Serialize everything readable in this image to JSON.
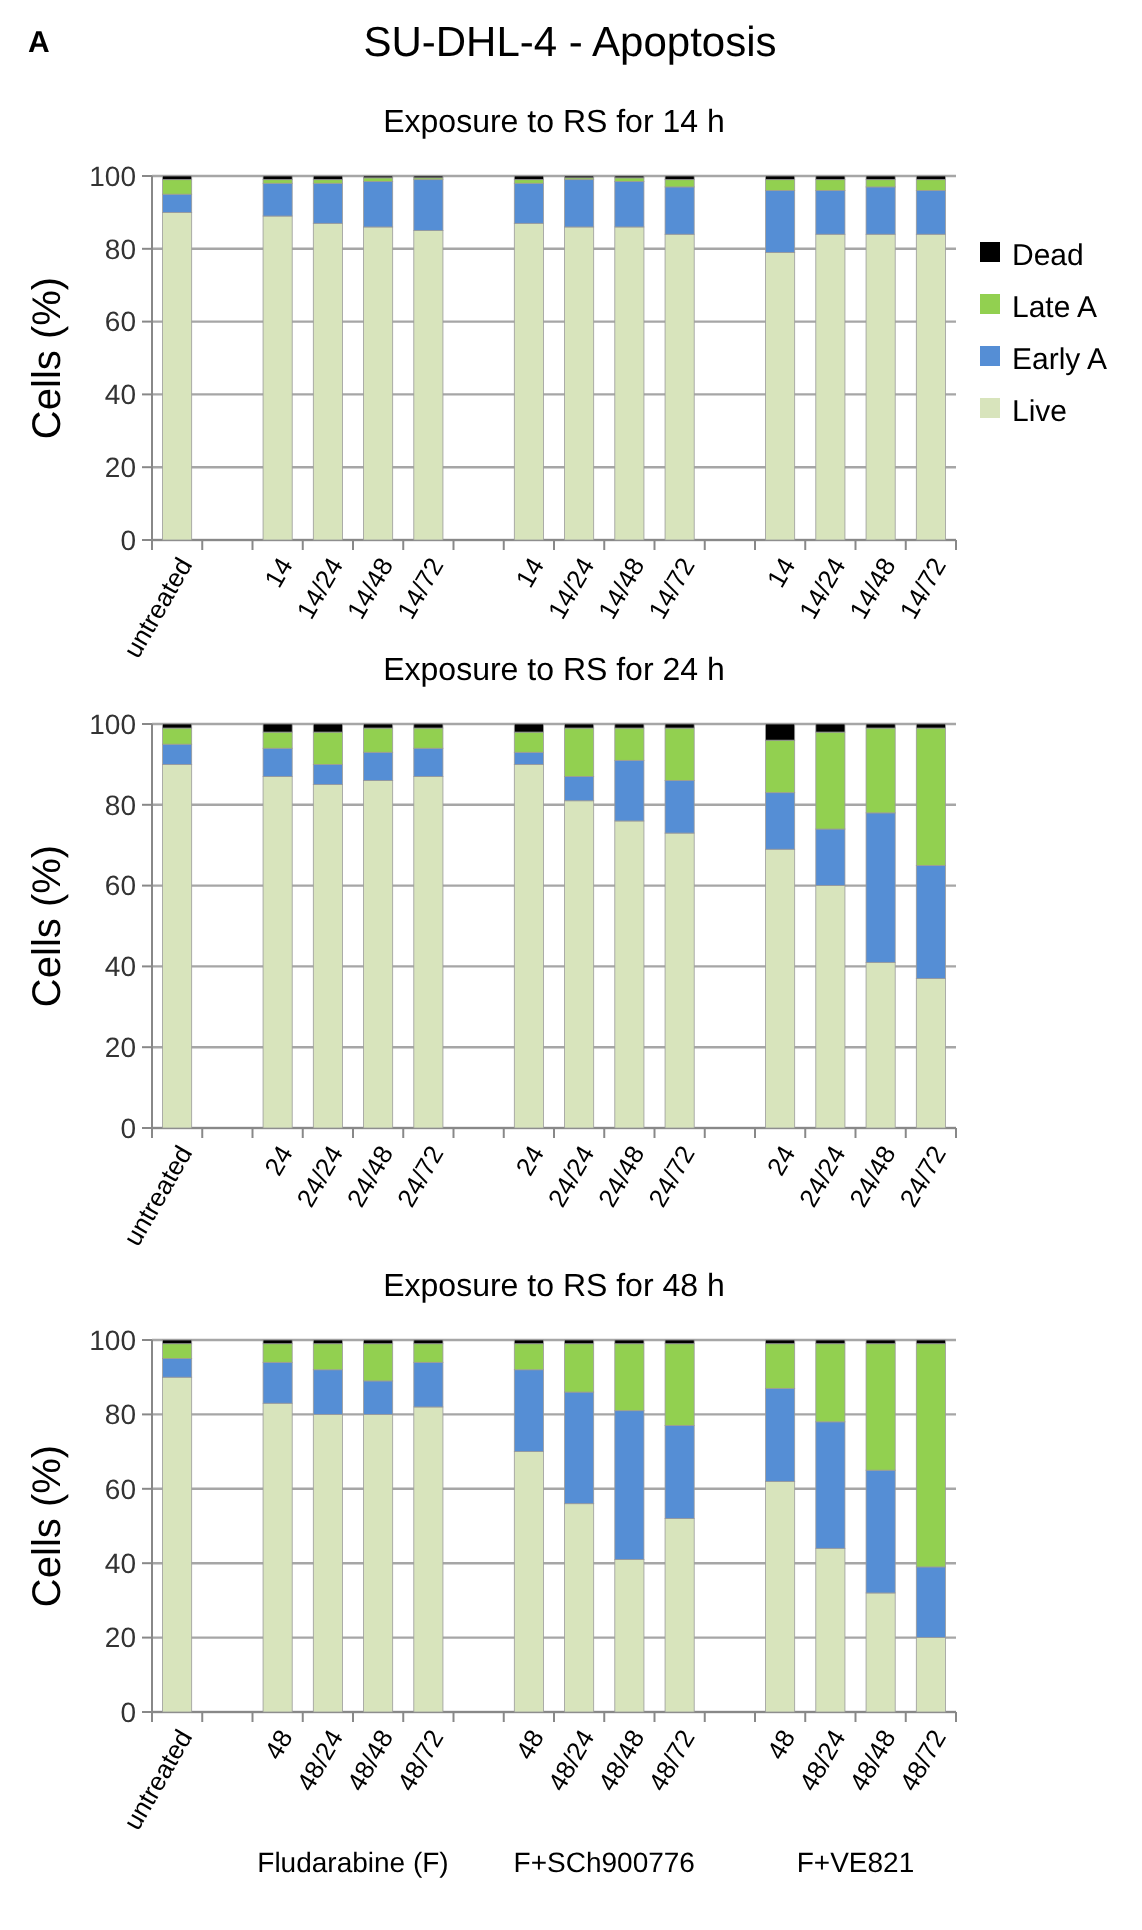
{
  "chart_data": [
    {
      "type": "bar",
      "stacked": true,
      "title": "SU-DHL-4 - Apoptosis",
      "subtitle": "Exposure to RS for 14 h",
      "annotations": [
        "A"
      ],
      "ylabel": "Cells (%)",
      "ylim": [
        0,
        100
      ],
      "yticks": [
        0,
        20,
        40,
        60,
        80,
        100
      ],
      "grid": "y",
      "legend": "right",
      "categories": [
        "untreated",
        null,
        "14",
        "14/24",
        "14/48",
        "14/72",
        null,
        "14",
        "14/24",
        "14/48",
        "14/72",
        null,
        "14",
        "14/24",
        "14/48",
        "14/72"
      ],
      "series": [
        {
          "name": "Live",
          "color": "#d8e4bc",
          "values": [
            90,
            null,
            89,
            87,
            86,
            85,
            null,
            87,
            86,
            86,
            84,
            null,
            79,
            84,
            84,
            84
          ]
        },
        {
          "name": "Early A",
          "color": "#558ed5",
          "values": [
            5,
            null,
            9,
            11,
            12.5,
            14,
            null,
            11,
            13,
            12.5,
            13,
            null,
            17,
            12,
            13,
            12
          ]
        },
        {
          "name": "Late A",
          "color": "#92d050",
          "values": [
            4,
            null,
            1,
            1,
            1,
            0.5,
            null,
            1,
            0.5,
            1,
            2,
            null,
            3,
            3,
            2,
            3
          ]
        },
        {
          "name": "Dead",
          "color": "#000000",
          "values": [
            1,
            null,
            1,
            1,
            0.5,
            0.5,
            null,
            1,
            0.5,
            0.5,
            1,
            null,
            1,
            1,
            1,
            1
          ]
        }
      ]
    },
    {
      "type": "bar",
      "stacked": true,
      "title": "Exposure to RS for  24 h",
      "ylabel": "Cells (%)",
      "ylim": [
        0,
        100
      ],
      "yticks": [
        0,
        20,
        40,
        60,
        80,
        100
      ],
      "grid": "y",
      "categories": [
        "untreated",
        null,
        "24",
        "24/24",
        "24/48",
        "24/72",
        null,
        "24",
        "24/24",
        "24/48",
        "24/72",
        null,
        "24",
        "24/24",
        "24/48",
        "24/72"
      ],
      "series": [
        {
          "color": "#d8e4bc",
          "values": [
            90,
            null,
            87,
            85,
            86,
            87,
            null,
            90,
            81,
            76,
            73,
            null,
            69,
            60,
            41,
            37
          ]
        },
        {
          "color": "#558ed5",
          "values": [
            5,
            null,
            7,
            5,
            7,
            7,
            null,
            3,
            6,
            15,
            13,
            null,
            14,
            14,
            37,
            28
          ]
        },
        {
          "color": "#92d050",
          "values": [
            4,
            null,
            4,
            8,
            6,
            5,
            null,
            5,
            12,
            8,
            13,
            null,
            13,
            24,
            21,
            34
          ]
        },
        {
          "color": "#000000",
          "values": [
            1,
            null,
            2,
            2,
            1,
            1,
            null,
            2,
            1,
            1,
            1,
            null,
            4,
            2,
            1,
            1
          ]
        }
      ]
    },
    {
      "type": "bar",
      "stacked": true,
      "title": "Exposure to RS for  48 h",
      "annotations": [
        "Fludarabine (F)",
        "F+SCh900776",
        "F+VE821"
      ],
      "ylabel": "Cells (%)",
      "ylim": [
        0,
        100
      ],
      "yticks": [
        0,
        20,
        40,
        60,
        80,
        100
      ],
      "grid": "y",
      "categories": [
        "untreated",
        null,
        "48",
        "48/24",
        "48/48",
        "48/72",
        null,
        "48",
        "48/24",
        "48/48",
        "48/72",
        null,
        "48",
        "48/24",
        "48/48",
        "48/72"
      ],
      "series": [
        {
          "color": "#d8e4bc",
          "values": [
            90,
            null,
            83,
            80,
            80,
            82,
            null,
            70,
            56,
            41,
            52,
            null,
            62,
            44,
            32,
            20
          ]
        },
        {
          "color": "#558ed5",
          "values": [
            5,
            null,
            11,
            12,
            9,
            12,
            null,
            22,
            30,
            40,
            25,
            null,
            25,
            34,
            33,
            19
          ]
        },
        {
          "color": "#92d050",
          "values": [
            4,
            null,
            5,
            7,
            10,
            5,
            null,
            7,
            13,
            18,
            22,
            null,
            12,
            21,
            34,
            60
          ]
        },
        {
          "color": "#000000",
          "values": [
            1,
            null,
            1,
            1,
            1,
            1,
            null,
            1,
            1,
            1,
            1,
            null,
            1,
            1,
            1,
            1
          ]
        }
      ]
    }
  ]
}
